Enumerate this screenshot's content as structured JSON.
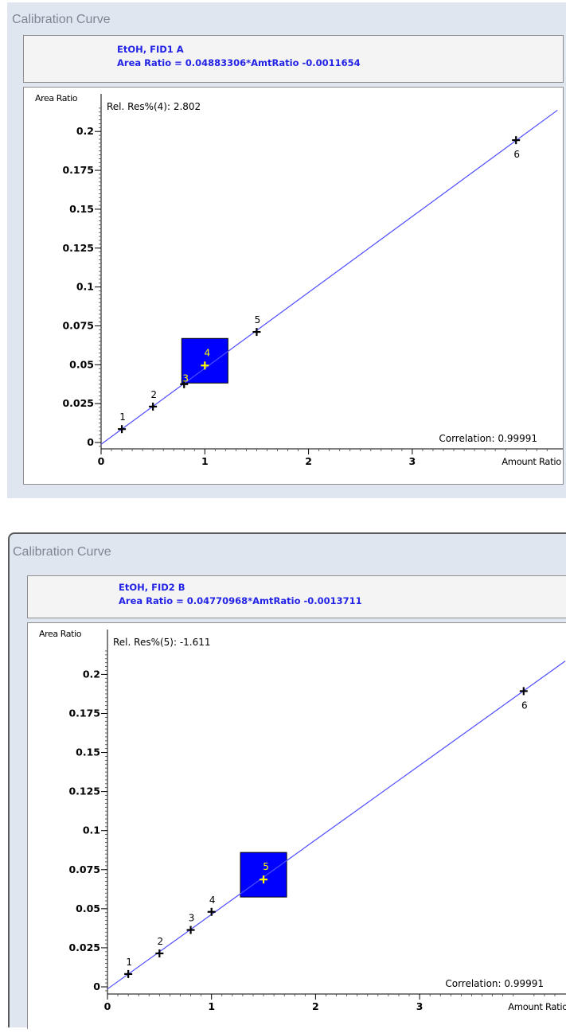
{
  "charts": [
    {
      "window_title": "Calibration Curve",
      "compound_line": "EtOH, FID1 A",
      "equation_line": "Area Ratio = 0.04883306*AmtRatio -0.0011654",
      "rel_res": "Rel. Res%(4): 2.802",
      "correlation": "Correlation: 0.99991",
      "y_axis_label": "Area Ratio",
      "x_axis_label": "Amount Ratio",
      "y_ticks": [
        "0",
        "0.025",
        "0.05",
        "0.075",
        "0.1",
        "0.125",
        "0.15",
        "0.175",
        "0.2"
      ],
      "x_ticks": [
        "0",
        "1",
        "2",
        "3"
      ],
      "selected_point": "4",
      "point_labels": [
        "1",
        "2",
        "3",
        "4",
        "5",
        "6"
      ]
    },
    {
      "window_title": "Calibration Curve",
      "compound_line": "EtOH, FID2 B",
      "equation_line": "Area Ratio = 0.04770968*AmtRatio -0.0013711",
      "rel_res": "Rel. Res%(5): -1.611",
      "correlation": "Correlation: 0.99991",
      "y_axis_label": "Area Ratio",
      "x_axis_label": "Amount Ratio",
      "y_ticks": [
        "0",
        "0.025",
        "0.05",
        "0.075",
        "0.1",
        "0.125",
        "0.15",
        "0.175",
        "0.2"
      ],
      "x_ticks": [
        "0",
        "1",
        "2",
        "3"
      ],
      "selected_point": "5",
      "point_labels": [
        "1",
        "2",
        "3",
        "4",
        "5",
        "6"
      ]
    }
  ],
  "chart_data": [
    {
      "type": "scatter",
      "title": "EtOH, FID1 A",
      "subtitle": "Area Ratio = 0.04883306*AmtRatio -0.0011654",
      "xlabel": "Amount Ratio",
      "ylabel": "Area Ratio",
      "xlim": [
        0,
        4.4
      ],
      "ylim": [
        -0.004,
        0.222
      ],
      "fit": {
        "slope": 0.04883306,
        "intercept": -0.0011654
      },
      "points": [
        {
          "label": "1",
          "x": 0.2,
          "y": 0.0086
        },
        {
          "label": "2",
          "x": 0.5,
          "y": 0.0231
        },
        {
          "label": "3",
          "x": 0.8,
          "y": 0.0375
        },
        {
          "label": "4",
          "x": 1.0,
          "y": 0.0495
        },
        {
          "label": "5",
          "x": 1.5,
          "y": 0.0711
        },
        {
          "label": "6",
          "x": 4.0,
          "y": 0.1944
        }
      ],
      "selected": "4",
      "accent_color": "#2323e6",
      "highlight_color": "#0000ff",
      "selected_marker_color": "#ffff00"
    },
    {
      "type": "scatter",
      "title": "EtOH, FID2 B",
      "subtitle": "Area Ratio = 0.04770968*AmtRatio -0.0013711",
      "xlabel": "Amount Ratio",
      "ylabel": "Area Ratio",
      "xlim": [
        0,
        4.4
      ],
      "ylim": [
        -0.004,
        0.222
      ],
      "fit": {
        "slope": 0.04770968,
        "intercept": -0.0013711
      },
      "points": [
        {
          "label": "1",
          "x": 0.2,
          "y": 0.0082
        },
        {
          "label": "2",
          "x": 0.5,
          "y": 0.0214
        },
        {
          "label": "3",
          "x": 0.8,
          "y": 0.0364
        },
        {
          "label": "4",
          "x": 1.0,
          "y": 0.048
        },
        {
          "label": "5",
          "x": 1.5,
          "y": 0.0687
        },
        {
          "label": "6",
          "x": 4.0,
          "y": 0.1893
        }
      ],
      "selected": "5",
      "accent_color": "#2323e6",
      "highlight_color": "#0000ff",
      "selected_marker_color": "#ffff00"
    }
  ]
}
